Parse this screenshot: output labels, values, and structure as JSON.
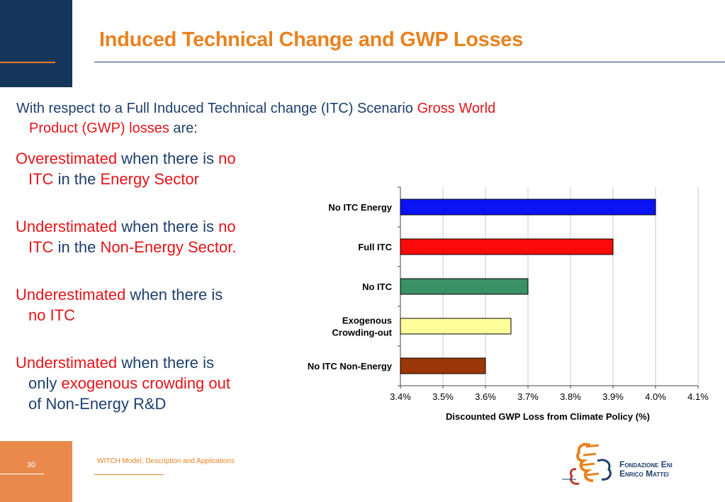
{
  "slide": {
    "title": "Induced Technical Change and GWP Losses",
    "intro": {
      "part1": "With respect to a Full Induced Technical change (ITC) Scenario ",
      "part2": "Gross World",
      "part3": "Product (GWP) losses",
      "part4": " are:"
    },
    "bullets": [
      {
        "l1a": "Overestimated",
        "l1b": " when there is ",
        "l1c": "no",
        "l2a": "ITC",
        "l2b": " in the ",
        "l2c": "Energy Sector"
      },
      {
        "l1a": "Understimated",
        "l1b": " when there is ",
        "l1c": "no",
        "l2a": "ITC",
        "l2b": " in the ",
        "l2c": "Non-Energy Sector."
      },
      {
        "l1a": "Underestimated",
        "l1b": " when there is",
        "l2a": "no ITC"
      },
      {
        "l1a": "Understimated",
        "l1b": " when there is",
        "l2a": "only ",
        "l2b": "exogenous crowding out",
        "l3a": "of Non-Energy R&D"
      }
    ],
    "footer": {
      "page_number": "30",
      "text": "WITCH Model, Description and Applications",
      "logo_line1": "Fondazione Eni",
      "logo_line2": "Enrico Mattei"
    }
  },
  "chart_data": {
    "type": "bar",
    "orientation": "horizontal",
    "categories": [
      "No ITC Energy",
      "Full ITC",
      "No ITC",
      "Exogenous Crowding-out",
      "No ITC Non-Energy"
    ],
    "category_lines": [
      [
        "No ITC Energy"
      ],
      [
        "Full ITC"
      ],
      [
        "No ITC"
      ],
      [
        "Exogenous",
        "Crowding-out"
      ],
      [
        "No ITC Non-Energy"
      ]
    ],
    "values": [
      4.0,
      3.9,
      3.7,
      3.66,
      3.6
    ],
    "bar_colors": [
      "#0b13f5",
      "#fb0a0a",
      "#3a9165",
      "#fffe9a",
      "#9b3606"
    ],
    "xlabel": "Discounted GWP Loss from Climate Policy (%)",
    "xlim": [
      3.4,
      4.1
    ],
    "xticks": [
      "3.4%",
      "3.5%",
      "3.6%",
      "3.7%",
      "3.8%",
      "3.9%",
      "4.0%",
      "4.1%"
    ],
    "grid": true
  }
}
